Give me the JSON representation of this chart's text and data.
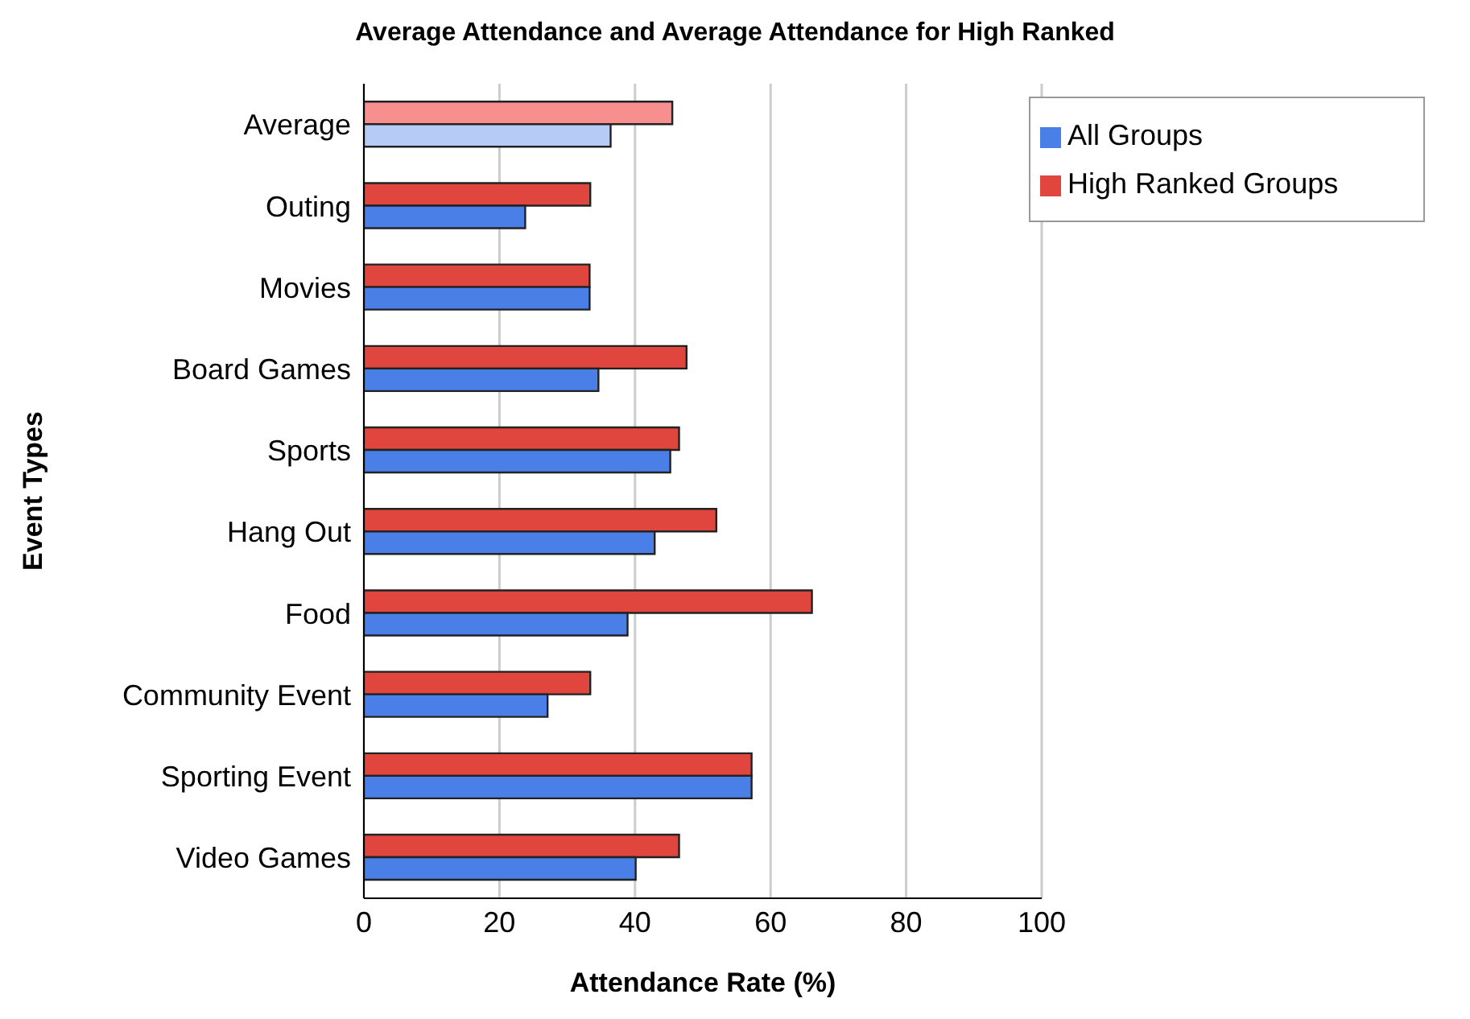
{
  "chart_data": {
    "type": "bar",
    "orientation": "horizontal",
    "title": "Average Attendance and Average Attendance for High Ranked",
    "xlabel": "Attendance Rate (%)",
    "ylabel": "Event Types",
    "categories": [
      "Average",
      "Outing",
      "Movies",
      "Board Games",
      "Sports",
      "Hang Out",
      "Food",
      "Community Event",
      "Sporting Event",
      "Video Games"
    ],
    "series": [
      {
        "name": "High Ranked Groups",
        "color": "#e0453e",
        "colors": [
          "#f78f8f",
          "#e0453e",
          "#e0453e",
          "#e0453e",
          "#e0453e",
          "#e0453e",
          "#e0453e",
          "#e0453e",
          "#e0453e",
          "#e0453e"
        ],
        "values": [
          45.5,
          33.4,
          33.3,
          47.6,
          46.5,
          52.0,
          66.1,
          33.4,
          57.2,
          46.5
        ]
      },
      {
        "name": "All Groups",
        "color": "#4a7fe8",
        "colors": [
          "#b7cbf7",
          "#4a7fe8",
          "#4a7fe8",
          "#4a7fe8",
          "#4a7fe8",
          "#4a7fe8",
          "#4a7fe8",
          "#4a7fe8",
          "#4a7fe8",
          "#4a7fe8"
        ],
        "values": [
          36.4,
          23.8,
          33.3,
          34.6,
          45.2,
          42.9,
          38.9,
          27.1,
          57.2,
          40.1
        ]
      }
    ],
    "xlim": [
      0,
      100
    ],
    "xticks": [
      0,
      20,
      40,
      60,
      80,
      100
    ],
    "grid": "x",
    "legend": "top right"
  }
}
